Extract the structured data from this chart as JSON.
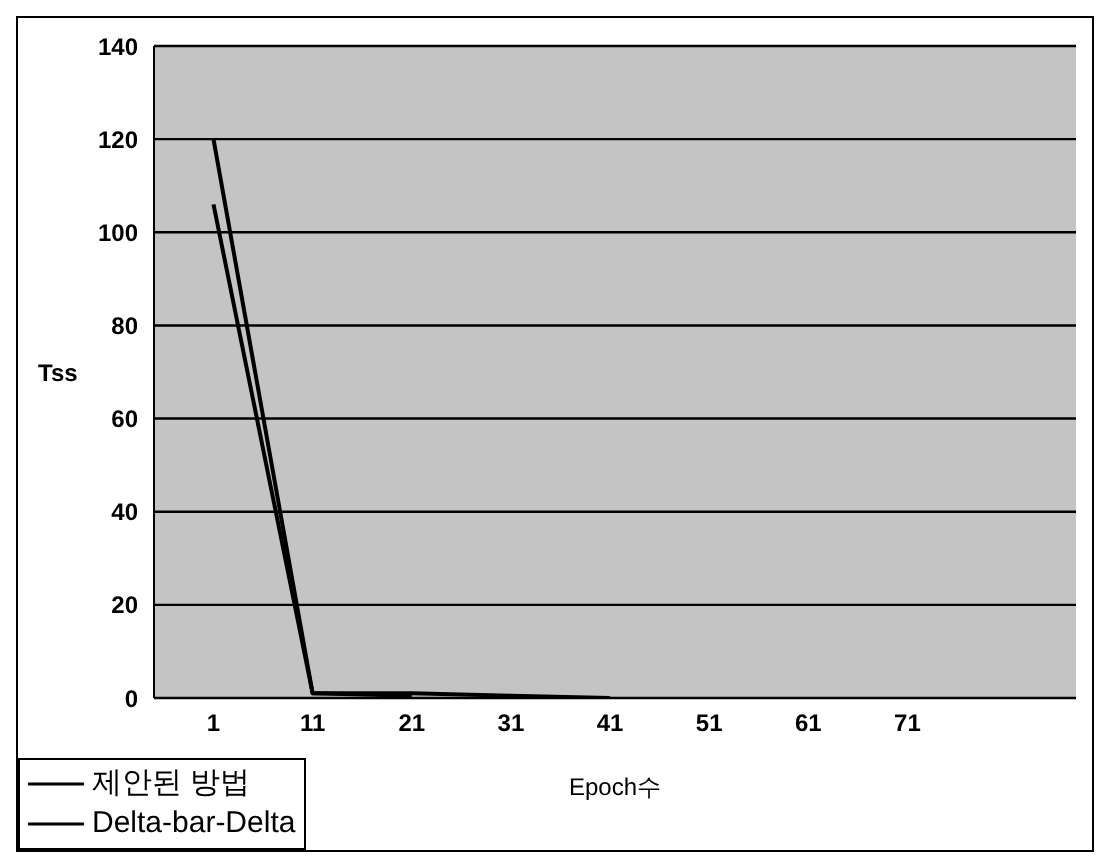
{
  "chart_data": {
    "type": "line",
    "xlabel": "Epoch수",
    "ylabel": "Tss",
    "xlim": [
      -5,
      88
    ],
    "xticks": [
      1,
      11,
      21,
      31,
      41,
      51,
      61,
      71
    ],
    "ylim": [
      0,
      140
    ],
    "yticks": [
      0,
      20,
      40,
      60,
      80,
      100,
      120,
      140
    ],
    "grid": "y",
    "legend": "bottom left",
    "series": [
      {
        "name": "제안된 방법",
        "color": "#000000",
        "x": [
          1,
          11,
          21
        ],
        "values": [
          106,
          1,
          0.5
        ]
      },
      {
        "name": "Delta-bar-Delta",
        "color": "#000000",
        "x": [
          1,
          11,
          21,
          31,
          41
        ],
        "values": [
          120,
          1,
          1,
          0.5,
          0
        ]
      }
    ]
  }
}
